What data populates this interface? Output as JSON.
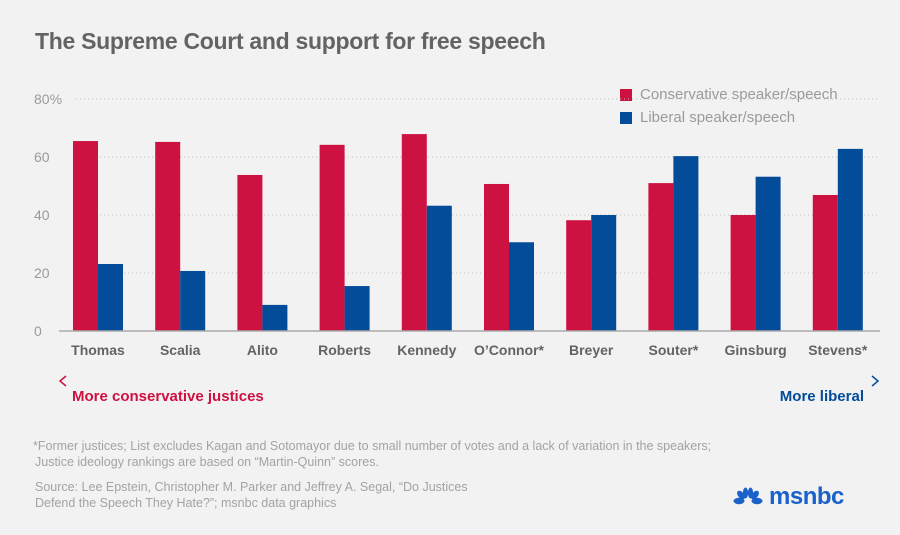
{
  "title": "The Supreme Court and support for free speech",
  "colors": {
    "conservative": "#cd1141",
    "liberal": "#034c99",
    "grid": "#bdbdbd",
    "axis_text": "#9a9a9a",
    "category_text": "#636363",
    "logo": "#1a62c9"
  },
  "chart_data": {
    "type": "bar",
    "title": "The Supreme Court and support for free speech",
    "xlabel": "",
    "ylabel": "",
    "ylim": [
      0,
      80
    ],
    "yticks": [
      0,
      20,
      40,
      60,
      80
    ],
    "ytick_labels": [
      "0",
      "20",
      "40",
      "60",
      "80%"
    ],
    "grid": true,
    "legend_position": "top-right",
    "categories": [
      "Thomas",
      "Scalia",
      "Alito",
      "Roberts",
      "Kennedy",
      "O’Connor*",
      "Breyer",
      "Souter*",
      "Ginsburg",
      "Stevens*"
    ],
    "series": [
      {
        "name": "Conservative speaker/speech",
        "color": "#cd1141",
        "values": [
          65.5,
          65.2,
          53.8,
          64.2,
          67.9,
          50.7,
          38.2,
          51.0,
          40.0,
          46.9
        ]
      },
      {
        "name": "Liberal speaker/speech",
        "color": "#034c99",
        "values": [
          23.1,
          20.7,
          9.0,
          15.5,
          43.2,
          30.6,
          40.0,
          60.3,
          53.2,
          62.8
        ]
      }
    ]
  },
  "ideology_axis": {
    "left_label": "More conservative justices",
    "right_label": "More liberal"
  },
  "footnotes": {
    "note_line1": "*Former justices; List excludes Kagan and Sotomayor due to small number of votes and a lack of variation in the speakers;",
    "note_line2": "Justice ideology rankings are based on “Martin-Quinn” scores.",
    "source_line1": "Source: Lee Epstein, Christopher M. Parker and Jeffrey A. Segal, “Do Justices",
    "source_line2": "Defend the Speech They Hate?”; msnbc data graphics"
  },
  "logo": {
    "text": "msnbc",
    "icon": "peacock-icon"
  }
}
